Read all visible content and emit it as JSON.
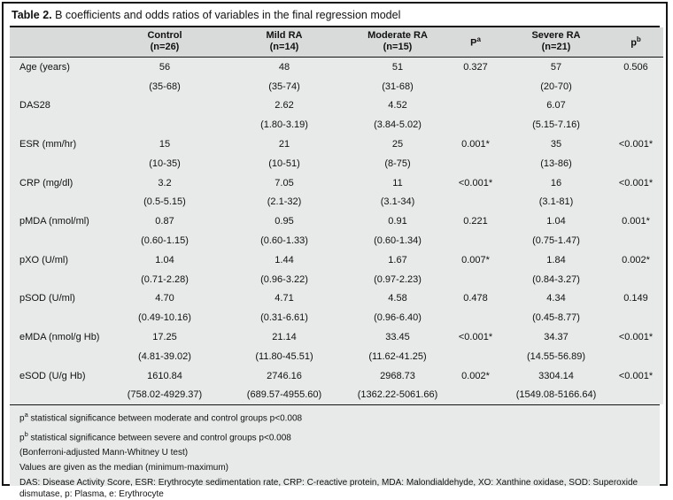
{
  "title": {
    "label": "Table 2.",
    "text": " B coefficients and odds ratios of variables in the final regression model"
  },
  "columns": [
    {
      "line1": "",
      "line2": ""
    },
    {
      "line1": "Control",
      "line2": "(n=26)"
    },
    {
      "line1": "Mild RA",
      "line2": "(n=14)"
    },
    {
      "line1": "Moderate RA",
      "line2": "(n=15)"
    },
    {
      "base": "P",
      "sup": "a"
    },
    {
      "line1": "Severe RA",
      "line2": "(n=21)"
    },
    {
      "base": "p",
      "sup": "b"
    }
  ],
  "rows": [
    {
      "label": "Age (years)",
      "values": [
        "56",
        "48",
        "51",
        "0.327",
        "57",
        "0.506"
      ],
      "ranges": [
        "(35-68)",
        "(35-74)",
        "(31-68)",
        "",
        "(20-70)",
        ""
      ]
    },
    {
      "label": "DAS28",
      "values": [
        "",
        "2.62",
        "4.52",
        "",
        "6.07",
        ""
      ],
      "ranges": [
        "",
        "(1.80-3.19)",
        "(3.84-5.02)",
        "",
        "(5.15-7.16)",
        ""
      ]
    },
    {
      "label": "ESR (mm/hr)",
      "values": [
        "15",
        "21",
        "25",
        "0.001*",
        "35",
        "<0.001*"
      ],
      "ranges": [
        "(10-35)",
        "(10-51)",
        "(8-75)",
        "",
        "(13-86)",
        ""
      ]
    },
    {
      "label": "CRP (mg/dl)",
      "values": [
        "3.2",
        "7.05",
        "11",
        "<0.001*",
        "16",
        "<0.001*"
      ],
      "ranges": [
        "(0.5-5.15)",
        "(2.1-32)",
        "(3.1-34)",
        "",
        "(3.1-81)",
        ""
      ]
    },
    {
      "label": "pMDA (nmol/ml)",
      "values": [
        "0.87",
        "0.95",
        "0.91",
        "0.221",
        "1.04",
        "0.001*"
      ],
      "ranges": [
        "(0.60-1.15)",
        "(0.60-1.33)",
        "(0.60-1.34)",
        "",
        "(0.75-1.47)",
        ""
      ]
    },
    {
      "label": "pXO (U/ml)",
      "values": [
        "1.04",
        "1.44",
        "1.67",
        "0.007*",
        "1.84",
        "0.002*"
      ],
      "ranges": [
        "(0.71-2.28)",
        "(0.96-3.22)",
        "(0.97-2.23)",
        "",
        "(0.84-3.27)",
        ""
      ]
    },
    {
      "label": "pSOD (U/ml)",
      "values": [
        "4.70",
        "4.71",
        "4.58",
        "0.478",
        "4.34",
        "0.149"
      ],
      "ranges": [
        "(0.49-10.16)",
        "(0.31-6.61)",
        "(0.96-6.40)",
        "",
        "(0.45-8.77)",
        ""
      ]
    },
    {
      "label": "eMDA (nmol/g Hb)",
      "values": [
        "17.25",
        "21.14",
        "33.45",
        "<0.001*",
        "34.37",
        "<0.001*"
      ],
      "ranges": [
        "(4.81-39.02)",
        "(11.80-45.51)",
        "(11.62-41.25)",
        "",
        "(14.55-56.89)",
        ""
      ]
    },
    {
      "label": "eSOD (U/g Hb)",
      "values": [
        "1610.84",
        "2746.16",
        "2968.73",
        "0.002*",
        "3304.14",
        "<0.001*"
      ],
      "ranges": [
        "(758.02-4929.37)",
        "(689.57-4955.60)",
        "(1362.22-5061.66)",
        "",
        "(1549.08-5166.64)",
        ""
      ]
    }
  ],
  "footnotes": [
    {
      "base": "p",
      "sup": "a",
      "text": "  statistical significance between moderate and control groups  p<0.008"
    },
    {
      "base": "p",
      "sup": "b",
      "text": "  statistical significance between severe and control groups  p<0.008"
    },
    {
      "text": "(Bonferroni-adjusted Mann-Whitney U test)"
    },
    {
      "text": "Values are given as the median (minimum-maximum)"
    },
    {
      "text": "DAS: Disease Activity Score, ESR: Erythrocyte sedimentation rate, CRP: C-reactive protein, MDA: Malondialdehyde, XO: Xanthine oxidase, SOD: Superoxide dismutase, p: Plasma, e: Erythrocyte"
    }
  ],
  "colors": {
    "frame_border": "#141414",
    "header_bg": "#d9dada",
    "body_bg": "#e8e9e9",
    "title_bg": "#ffffff",
    "text": "#111111"
  }
}
